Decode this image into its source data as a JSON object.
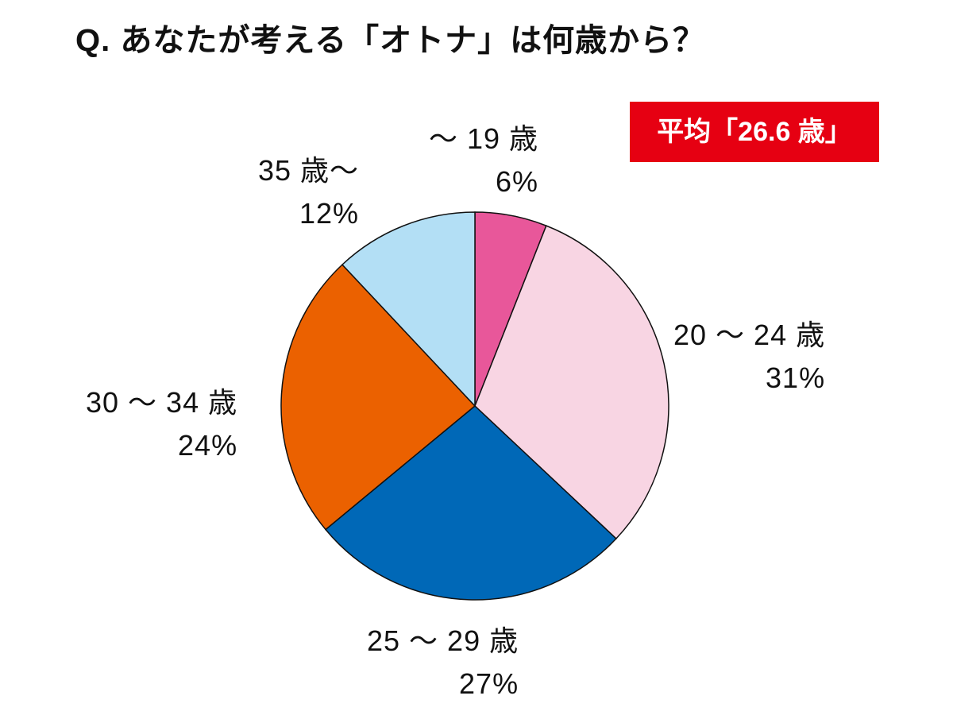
{
  "title": "Q. あなたが考える「オトナ」は何歳から？",
  "badge": {
    "text": "平均「26.6 歳」",
    "color": "#e60012"
  },
  "chart_data": {
    "type": "pie",
    "title": "Q. あなたが考える「オトナ」は何歳から？",
    "slices": [
      {
        "label": "～ 19 歳",
        "value": 6,
        "value_label": "6%",
        "color": "#e8579a"
      },
      {
        "label": "20 ～ 24 歳",
        "value": 31,
        "value_label": "31%",
        "color": "#f8d5e3"
      },
      {
        "label": "25 ～ 29 歳",
        "value": 27,
        "value_label": "27%",
        "color": "#0068b7"
      },
      {
        "label": "30 ～ 34 歳",
        "value": 24,
        "value_label": "24%",
        "color": "#eb6100"
      },
      {
        "label": "35 歳～",
        "value": 12,
        "value_label": "12%",
        "color": "#b3dff5"
      }
    ],
    "start_direction": "top",
    "order": "clockwise",
    "annotation": "平均「26.6 歳」"
  }
}
